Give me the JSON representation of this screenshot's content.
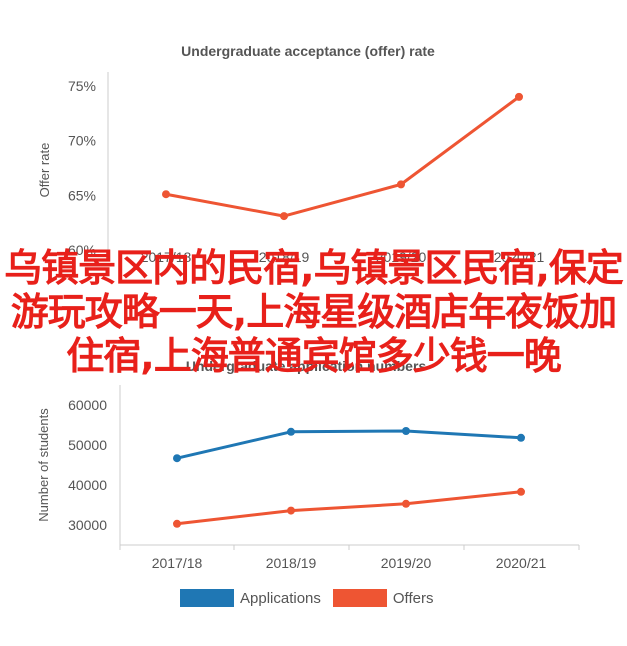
{
  "chart_data": [
    {
      "type": "line",
      "title": "Undergraduate acceptance (offer) rate",
      "ylabel": "Offer rate",
      "categories": [
        "2017/18",
        "2018/19",
        "2019/20",
        "2020/21"
      ],
      "yticks": [
        "60%",
        "65%",
        "70%",
        "75%"
      ],
      "ylim": [
        60,
        76
      ],
      "series": [
        {
          "color": "#ee5533",
          "values": [
            65.1,
            63.1,
            66.0,
            74.0
          ]
        }
      ]
    },
    {
      "type": "line",
      "title": "Undergraduate application numbers",
      "ylabel": "Number of students",
      "categories": [
        "2017/18",
        "2018/19",
        "2019/20",
        "2020/21"
      ],
      "yticks": [
        "30000",
        "40000",
        "50000",
        "60000"
      ],
      "ylim": [
        25000,
        65000
      ],
      "series": [
        {
          "name": "Applications",
          "color": "#1f77b4",
          "values": [
            46700,
            53300,
            53500,
            51800
          ]
        },
        {
          "name": "Offers",
          "color": "#ee5533",
          "values": [
            30300,
            33600,
            35300,
            38300
          ]
        }
      ],
      "legend": "bottom"
    }
  ],
  "overlay_text": "乌镇景区内的民宿,乌镇景区民宿,保定游玩攻略一天,上海星级酒店年夜饭加住宿,上海普通宾馆多少钱一晚"
}
